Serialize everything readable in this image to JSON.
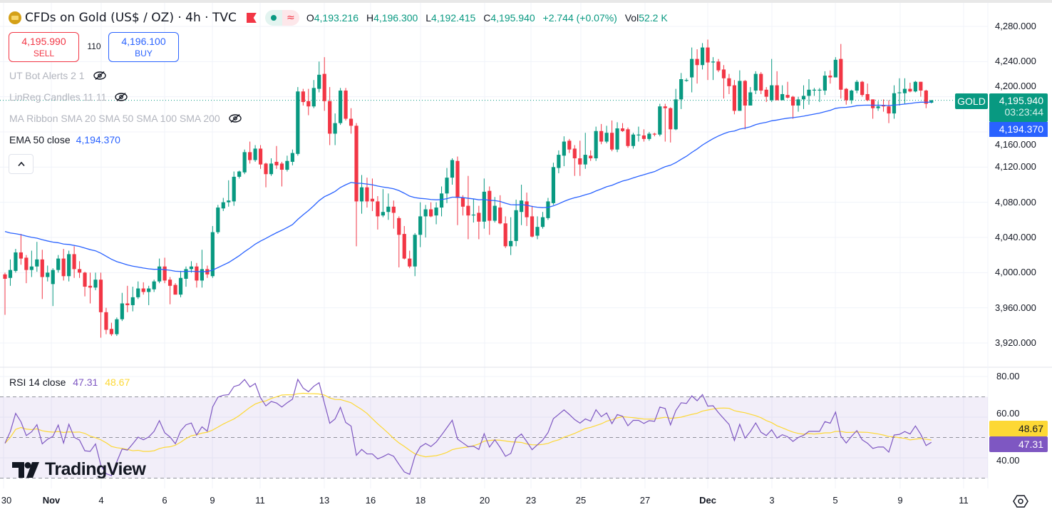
{
  "header": {
    "title": "CFDs on Gold (US$ / OZ) · 4h · TVC",
    "ohlc": {
      "o_label": "O",
      "o": "4,193.216",
      "h_label": "H",
      "h": "4,196.300",
      "l_label": "L",
      "l": "4,192.415",
      "c_label": "C",
      "c": "4,195.940",
      "change": "+2.744 (+0.07%)",
      "vol_label": "Vol",
      "vol": "52.2 K"
    },
    "icons": {
      "symbol": "gold-coin-icon",
      "flag": "flag-icon",
      "market_open": "green-dot-icon",
      "data_delay": "wave-icon"
    }
  },
  "trade": {
    "sell_price": "4,195.990",
    "sell_label": "SELL",
    "spread": "110",
    "buy_price": "4,196.100",
    "buy_label": "BUY"
  },
  "indicators": [
    {
      "label": "UT Bot Alerts 2 1",
      "hidden": true
    },
    {
      "label": "LinReg Candles 11 11",
      "hidden": true
    },
    {
      "label": "MA Ribbon SMA 20 SMA 50 SMA 100 SMA 200",
      "hidden": true
    },
    {
      "label": "EMA 50 close",
      "value": "4,194.370"
    }
  ],
  "collapse_icon": "chevron-up-icon",
  "price_axis": [
    "4,280.000",
    "4,240.000",
    "4,200.000",
    "4,160.000",
    "4,120.000",
    "4,080.000",
    "4,040.000",
    "4,000.000",
    "3,960.000",
    "3,920.000"
  ],
  "tags": {
    "symbol": "GOLD",
    "last_price": "4,195.940",
    "countdown": "03:23:44",
    "ema": "4,194.370"
  },
  "rsi": {
    "label": "RSI 14 close",
    "value": "47.31",
    "ma_value": "48.67",
    "axis": [
      "80.00",
      "60.00",
      "40.00"
    ],
    "upper_band": 70,
    "middle_band": 50,
    "lower_band": 30
  },
  "date_axis": [
    {
      "label": "30",
      "bold": false
    },
    {
      "label": "Nov",
      "bold": true
    },
    {
      "label": "4",
      "bold": false
    },
    {
      "label": "6",
      "bold": false
    },
    {
      "label": "9",
      "bold": false
    },
    {
      "label": "11",
      "bold": false
    },
    {
      "label": "13",
      "bold": false
    },
    {
      "label": "16",
      "bold": false
    },
    {
      "label": "18",
      "bold": false
    },
    {
      "label": "20",
      "bold": false
    },
    {
      "label": "23",
      "bold": false
    },
    {
      "label": "25",
      "bold": false
    },
    {
      "label": "27",
      "bold": false
    },
    {
      "label": "Dec",
      "bold": true
    },
    {
      "label": "3",
      "bold": false
    },
    {
      "label": "5",
      "bold": false
    },
    {
      "label": "9",
      "bold": false
    },
    {
      "label": "11",
      "bold": false
    }
  ],
  "logo": "TradingView",
  "colors": {
    "up": "#089981",
    "down": "#f23645",
    "ema": "#2962ff",
    "rsi": "#7e57c2",
    "rsi_ma": "#fdd835",
    "rsi_band": "#7e57c2"
  },
  "chart_data": {
    "type": "candlestick",
    "timeframe": "4h",
    "ylim": [
      3900,
      4290
    ],
    "grid": true,
    "overlays": [
      "EMA 50 close"
    ],
    "candles_ohlc": [
      [
        3998,
        4000,
        3952,
        3993
      ],
      [
        3994,
        4015,
        3985,
        4003
      ],
      [
        4002,
        4027,
        4000,
        4023
      ],
      [
        4023,
        4044,
        4009,
        4016
      ],
      [
        4017,
        4020,
        3988,
        4003
      ],
      [
        4003,
        4025,
        3995,
        4007
      ],
      [
        4007,
        4035,
        4001,
        4015
      ],
      [
        4015,
        4026,
        3970,
        3995
      ],
      [
        3995,
        4008,
        3990,
        4000
      ],
      [
        3987,
        4005,
        3962,
        4003
      ],
      [
        4003,
        4020,
        4000,
        4016
      ],
      [
        4016,
        4027,
        3991,
        3996
      ],
      [
        3996,
        4025,
        3990,
        4021
      ],
      [
        4021,
        4030,
        3994,
        4004
      ],
      [
        4004,
        4013,
        3994,
        4000
      ],
      [
        4000,
        4001,
        3973,
        3984
      ],
      [
        3985,
        4000,
        3965,
        3983
      ],
      [
        3983,
        4000,
        3980,
        3992
      ],
      [
        3992,
        4000,
        3926,
        3955
      ],
      [
        3955,
        3960,
        3930,
        3935
      ],
      [
        3936,
        3943,
        3928,
        3930
      ],
      [
        3930,
        3949,
        3928,
        3947
      ],
      [
        3947,
        3977,
        3945,
        3965
      ],
      [
        3965,
        3985,
        3955,
        3963
      ],
      [
        3963,
        3984,
        3956,
        3972
      ],
      [
        3972,
        3990,
        3970,
        3982
      ],
      [
        3982,
        3989,
        3975,
        3978
      ],
      [
        3978,
        3985,
        3963,
        3982
      ],
      [
        3981,
        3992,
        3978,
        3990
      ],
      [
        3990,
        4016,
        3988,
        4007
      ],
      [
        4007,
        4017,
        3988,
        3991
      ],
      [
        3992,
        3995,
        3964,
        3985
      ],
      [
        3986,
        3988,
        3975,
        3975
      ],
      [
        3975,
        4002,
        3972,
        3994
      ],
      [
        3993,
        4007,
        3984,
        4004
      ],
      [
        4004,
        4013,
        4000,
        4007
      ],
      [
        4007,
        4011,
        3983,
        3991
      ],
      [
        3991,
        4026,
        3983,
        4004
      ],
      [
        4004,
        4008,
        3994,
        3998
      ],
      [
        3996,
        4053,
        3994,
        4046
      ],
      [
        4046,
        4077,
        4044,
        4074
      ],
      [
        4073,
        4085,
        4070,
        4080
      ],
      [
        4080,
        4105,
        4075,
        4082
      ],
      [
        4081,
        4115,
        4076,
        4109
      ],
      [
        4109,
        4116,
        4107,
        4115
      ],
      [
        4114,
        4140,
        4112,
        4137
      ],
      [
        4137,
        4149,
        4124,
        4128
      ],
      [
        4128,
        4145,
        4126,
        4141
      ],
      [
        4141,
        4145,
        4118,
        4123
      ],
      [
        4124,
        4125,
        4097,
        4112
      ],
      [
        4112,
        4130,
        4110,
        4124
      ],
      [
        4126,
        4144,
        4118,
        4122
      ],
      [
        4124,
        4126,
        4098,
        4117
      ],
      [
        4117,
        4133,
        4115,
        4127
      ],
      [
        4126,
        4140,
        4122,
        4136
      ],
      [
        4135,
        4211,
        4133,
        4206
      ],
      [
        4206,
        4209,
        4190,
        4194
      ],
      [
        4195,
        4209,
        4179,
        4189
      ],
      [
        4189,
        4219,
        4187,
        4210
      ],
      [
        4209,
        4240,
        4205,
        4225
      ],
      [
        4226,
        4245,
        4184,
        4195
      ],
      [
        4195,
        4211,
        4145,
        4158
      ],
      [
        4158,
        4181,
        4145,
        4170
      ],
      [
        4170,
        4210,
        4168,
        4207
      ],
      [
        4207,
        4210,
        4173,
        4175
      ],
      [
        4175,
        4187,
        4158,
        4167
      ],
      [
        4167,
        4170,
        4030,
        4081
      ],
      [
        4081,
        4111,
        4067,
        4097
      ],
      [
        4097,
        4108,
        4074,
        4081
      ],
      [
        4084,
        4107,
        4070,
        4081
      ],
      [
        4081,
        4087,
        4049,
        4064
      ],
      [
        4065,
        4095,
        4063,
        4069
      ],
      [
        4069,
        4090,
        4060,
        4075
      ],
      [
        4075,
        4082,
        4050,
        4068
      ],
      [
        4062,
        4064,
        4006,
        4043
      ],
      [
        4044,
        4053,
        4015,
        4016
      ],
      [
        4016,
        4025,
        4005,
        4007
      ],
      [
        4007,
        4045,
        3996,
        4043
      ],
      [
        4043,
        4080,
        4029,
        4064
      ],
      [
        4064,
        4077,
        4040,
        4072
      ],
      [
        4072,
        4080,
        4063,
        4064
      ],
      [
        4065,
        4080,
        4055,
        4074
      ],
      [
        4074,
        4098,
        4064,
        4090
      ],
      [
        4090,
        4119,
        4079,
        4108
      ],
      [
        4108,
        4130,
        4100,
        4128
      ],
      [
        4127,
        4132,
        4054,
        4085
      ],
      [
        4085,
        4088,
        4065,
        4075
      ],
      [
        4076,
        4110,
        4038,
        4065
      ],
      [
        4066,
        4084,
        4057,
        4066
      ],
      [
        4068,
        4076,
        4038,
        4058
      ],
      [
        4058,
        4107,
        4050,
        4092
      ],
      [
        4093,
        4098,
        4043,
        4059
      ],
      [
        4059,
        4086,
        4057,
        4076
      ],
      [
        4074,
        4088,
        4055,
        4056
      ],
      [
        4056,
        4064,
        4028,
        4030
      ],
      [
        4030,
        4063,
        4020,
        4036
      ],
      [
        4036,
        4083,
        4030,
        4071
      ],
      [
        4069,
        4100,
        4054,
        4082
      ],
      [
        4081,
        4091,
        4053,
        4063
      ],
      [
        4064,
        4076,
        4040,
        4041
      ],
      [
        4042,
        4064,
        4038,
        4052
      ],
      [
        4052,
        4069,
        4050,
        4063
      ],
      [
        4062,
        4085,
        4060,
        4081
      ],
      [
        4079,
        4125,
        4077,
        4120
      ],
      [
        4119,
        4139,
        4113,
        4134
      ],
      [
        4133,
        4155,
        4121,
        4149
      ],
      [
        4150,
        4152,
        4136,
        4140
      ],
      [
        4141,
        4145,
        4110,
        4130
      ],
      [
        4130,
        4150,
        4110,
        4123
      ],
      [
        4123,
        4159,
        4118,
        4134
      ],
      [
        4133,
        4139,
        4127,
        4130
      ],
      [
        4130,
        4166,
        4127,
        4161
      ],
      [
        4161,
        4169,
        4146,
        4149
      ],
      [
        4149,
        4167,
        4147,
        4159
      ],
      [
        4159,
        4173,
        4138,
        4140
      ],
      [
        4140,
        4171,
        4137,
        4164
      ],
      [
        4164,
        4170,
        4160,
        4161
      ],
      [
        4163,
        4165,
        4142,
        4144
      ],
      [
        4144,
        4159,
        4141,
        4157
      ],
      [
        4157,
        4166,
        4149,
        4157
      ],
      [
        4156,
        4163,
        4149,
        4152
      ],
      [
        4152,
        4160,
        4150,
        4158
      ],
      [
        4158,
        4159,
        4155,
        4157
      ],
      [
        4157,
        4192,
        4155,
        4189
      ],
      [
        4189,
        4192,
        4149,
        4187
      ],
      [
        4187,
        4188,
        4148,
        4163
      ],
      [
        4163,
        4209,
        4162,
        4197
      ],
      [
        4197,
        4227,
        4186,
        4220
      ],
      [
        4219,
        4221,
        4217,
        4219
      ],
      [
        4222,
        4256,
        4205,
        4243
      ],
      [
        4243,
        4254,
        4215,
        4236
      ],
      [
        4236,
        4261,
        4231,
        4256
      ],
      [
        4256,
        4265,
        4219,
        4239
      ],
      [
        4239,
        4245,
        4219,
        4240
      ],
      [
        4240,
        4243,
        4228,
        4230
      ],
      [
        4231,
        4236,
        4198,
        4221
      ],
      [
        4221,
        4226,
        4203,
        4212
      ],
      [
        4213,
        4219,
        4180,
        4184
      ],
      [
        4184,
        4230,
        4184,
        4218
      ],
      [
        4218,
        4219,
        4163,
        4190
      ],
      [
        4190,
        4211,
        4190,
        4205
      ],
      [
        4207,
        4229,
        4203,
        4226
      ],
      [
        4226,
        4228,
        4203,
        4207
      ],
      [
        4208,
        4211,
        4194,
        4200
      ],
      [
        4196,
        4243,
        4194,
        4213
      ],
      [
        4213,
        4229,
        4196,
        4196
      ],
      [
        4196,
        4213,
        4196,
        4203
      ],
      [
        4202,
        4217,
        4198,
        4199
      ],
      [
        4200,
        4201,
        4175,
        4190
      ],
      [
        4190,
        4200,
        4183,
        4197
      ],
      [
        4197,
        4213,
        4186,
        4201
      ],
      [
        4201,
        4220,
        4191,
        4208
      ],
      [
        4208,
        4210,
        4201,
        4208
      ],
      [
        4208,
        4210,
        4194,
        4208
      ],
      [
        4207,
        4229,
        4202,
        4224
      ],
      [
        4224,
        4230,
        4215,
        4222
      ],
      [
        4222,
        4245,
        4222,
        4242
      ],
      [
        4243,
        4260,
        4198,
        4208
      ],
      [
        4209,
        4210,
        4191,
        4196
      ],
      [
        4196,
        4208,
        4192,
        4207
      ],
      [
        4207,
        4219,
        4204,
        4217
      ],
      [
        4217,
        4218,
        4200,
        4202
      ],
      [
        4203,
        4215,
        4195,
        4196
      ],
      [
        4197,
        4197,
        4175,
        4187
      ],
      [
        4187,
        4195,
        4184,
        4189
      ],
      [
        4190,
        4197,
        4183,
        4189
      ],
      [
        4189,
        4196,
        4170,
        4181
      ],
      [
        4181,
        4213,
        4175,
        4204
      ],
      [
        4204,
        4221,
        4190,
        4205
      ],
      [
        4204,
        4221,
        4192,
        4209
      ],
      [
        4209,
        4216,
        4205,
        4206
      ],
      [
        4206,
        4218,
        4205,
        4217
      ],
      [
        4217,
        4217,
        4200,
        4207
      ],
      [
        4207,
        4208,
        4187,
        4192
      ],
      [
        4193.216,
        4196.3,
        4192.415,
        4195.94
      ]
    ],
    "last_price": 4195.94,
    "ema50_last": 4194.37,
    "rsi_last": 47.31,
    "rsi_ma_last": 48.67,
    "rsi_ylim": [
      25,
      85
    ]
  }
}
